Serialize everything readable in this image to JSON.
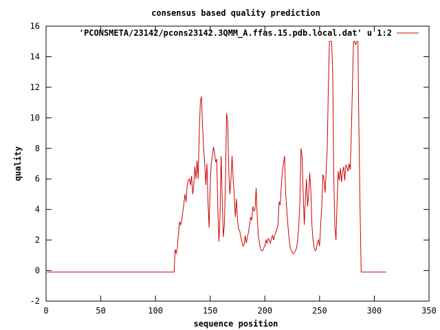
{
  "chart_data": {
    "type": "line",
    "title": "consensus based quality prediction",
    "xlabel": "sequence position",
    "ylabel": "quality",
    "xlim": [
      0,
      350
    ],
    "ylim": [
      -2,
      16
    ],
    "x_ticks": [
      0,
      50,
      100,
      150,
      200,
      250,
      300,
      350
    ],
    "y_ticks": [
      -2,
      0,
      2,
      4,
      6,
      8,
      10,
      12,
      14,
      16
    ],
    "grid": false,
    "legend_position": "top-right",
    "series": [
      {
        "name": "'PCONSMETA/23142/pcons23142.3QMM_A.ffas.15.pdb.local.dat' u 1:2",
        "color": "#cc0000",
        "points": [
          [
            1,
            -0.1
          ],
          [
            117,
            -0.1
          ],
          [
            118,
            1.4
          ],
          [
            119,
            1.1
          ],
          [
            120,
            1.5
          ],
          [
            121,
            2.4
          ],
          [
            122,
            3.2
          ],
          [
            123,
            3.0
          ],
          [
            124,
            3.3
          ],
          [
            126,
            4.4
          ],
          [
            127,
            5.0
          ],
          [
            128,
            4.5
          ],
          [
            129,
            5.6
          ],
          [
            130,
            5.9
          ],
          [
            131,
            6.0
          ],
          [
            132,
            5.6
          ],
          [
            133,
            6.2
          ],
          [
            134,
            5.0
          ],
          [
            135,
            5.6
          ],
          [
            136,
            6.8
          ],
          [
            137,
            6.0
          ],
          [
            138,
            7.2
          ],
          [
            139,
            6.0
          ],
          [
            140,
            9.0
          ],
          [
            141,
            11.0
          ],
          [
            142,
            11.4
          ],
          [
            143,
            9.5
          ],
          [
            144,
            8.0
          ],
          [
            145,
            7.0
          ],
          [
            146,
            5.6
          ],
          [
            147,
            7.0
          ],
          [
            148,
            4.5
          ],
          [
            149,
            2.8
          ],
          [
            150,
            5.6
          ],
          [
            151,
            7.0
          ],
          [
            152,
            7.5
          ],
          [
            153,
            8.1
          ],
          [
            154,
            7.7
          ],
          [
            155,
            7.1
          ],
          [
            156,
            7.3
          ],
          [
            157,
            4.0
          ],
          [
            158,
            1.9
          ],
          [
            159,
            3.5
          ],
          [
            160,
            7.5
          ],
          [
            161,
            4.8
          ],
          [
            162,
            2.2
          ],
          [
            163,
            3.0
          ],
          [
            164,
            6.0
          ],
          [
            165,
            10.3
          ],
          [
            166,
            9.8
          ],
          [
            167,
            6.5
          ],
          [
            168,
            5.0
          ],
          [
            169,
            6.0
          ],
          [
            170,
            7.5
          ],
          [
            171,
            6.0
          ],
          [
            172,
            4.9
          ],
          [
            173,
            3.5
          ],
          [
            174,
            4.7
          ],
          [
            175,
            3.3
          ],
          [
            176,
            2.7
          ],
          [
            177,
            2.6
          ],
          [
            178,
            2.2
          ],
          [
            179,
            1.9
          ],
          [
            180,
            1.6
          ],
          [
            181,
            1.7
          ],
          [
            182,
            2.3
          ],
          [
            183,
            1.8
          ],
          [
            184,
            2.2
          ],
          [
            185,
            2.5
          ],
          [
            186,
            3.0
          ],
          [
            187,
            3.5
          ],
          [
            188,
            3.3
          ],
          [
            189,
            4.2
          ],
          [
            190,
            3.9
          ],
          [
            191,
            4.0
          ],
          [
            192,
            5.4
          ],
          [
            193,
            3.5
          ],
          [
            194,
            2.3
          ],
          [
            195,
            1.8
          ],
          [
            196,
            1.4
          ],
          [
            197,
            1.3
          ],
          [
            198,
            1.3
          ],
          [
            199,
            1.5
          ],
          [
            200,
            1.6
          ],
          [
            201,
            2.0
          ],
          [
            202,
            1.8
          ],
          [
            203,
            2.1
          ],
          [
            204,
            2.0
          ],
          [
            205,
            1.8
          ],
          [
            206,
            2.1
          ],
          [
            207,
            2.3
          ],
          [
            208,
            2.0
          ],
          [
            209,
            2.3
          ],
          [
            210,
            2.5
          ],
          [
            211,
            2.7
          ],
          [
            212,
            3.0
          ],
          [
            213,
            4.5
          ],
          [
            214,
            4.3
          ],
          [
            215,
            5.5
          ],
          [
            216,
            6.5
          ],
          [
            217,
            7.0
          ],
          [
            218,
            7.5
          ],
          [
            219,
            5.0
          ],
          [
            220,
            4.0
          ],
          [
            221,
            3.0
          ],
          [
            222,
            2.2
          ],
          [
            223,
            1.6
          ],
          [
            224,
            1.3
          ],
          [
            225,
            1.2
          ],
          [
            226,
            1.1
          ],
          [
            227,
            1.2
          ],
          [
            228,
            1.3
          ],
          [
            229,
            1.5
          ],
          [
            230,
            2.0
          ],
          [
            231,
            3.0
          ],
          [
            232,
            4.5
          ],
          [
            233,
            8.0
          ],
          [
            234,
            7.5
          ],
          [
            235,
            5.0
          ],
          [
            236,
            3.0
          ],
          [
            237,
            4.6
          ],
          [
            238,
            6.0
          ],
          [
            239,
            4.2
          ],
          [
            240,
            5.0
          ],
          [
            241,
            6.4
          ],
          [
            242,
            5.2
          ],
          [
            243,
            3.0
          ],
          [
            244,
            2.0
          ],
          [
            245,
            1.5
          ],
          [
            246,
            1.3
          ],
          [
            247,
            1.4
          ],
          [
            248,
            1.8
          ],
          [
            249,
            2.0
          ],
          [
            250,
            1.6
          ],
          [
            251,
            3.0
          ],
          [
            252,
            4.2
          ],
          [
            253,
            6.3
          ],
          [
            254,
            6.0
          ],
          [
            255,
            5.1
          ],
          [
            256,
            6.5
          ],
          [
            257,
            8.0
          ],
          [
            258,
            12.0
          ],
          [
            259,
            15.0
          ],
          [
            260,
            15.0
          ],
          [
            261,
            15.0
          ],
          [
            262,
            13.0
          ],
          [
            263,
            6.0
          ],
          [
            264,
            2.8
          ],
          [
            265,
            2.0
          ],
          [
            266,
            4.5
          ],
          [
            267,
            6.5
          ],
          [
            268,
            5.9
          ],
          [
            269,
            6.7
          ],
          [
            270,
            5.8
          ],
          [
            271,
            6.5
          ],
          [
            272,
            6.8
          ],
          [
            273,
            5.9
          ],
          [
            274,
            6.9
          ],
          [
            275,
            6.8
          ],
          [
            276,
            6.5
          ],
          [
            277,
            7.0
          ],
          [
            278,
            6.6
          ],
          [
            279,
            9.0
          ],
          [
            280,
            12.0
          ],
          [
            281,
            15.0
          ],
          [
            282,
            15.0
          ],
          [
            283,
            14.8
          ],
          [
            284,
            15.0
          ],
          [
            285,
            15.0
          ],
          [
            286,
            9.0
          ],
          [
            287,
            4.0
          ],
          [
            288,
            -0.1
          ],
          [
            311,
            -0.1
          ]
        ]
      }
    ]
  }
}
